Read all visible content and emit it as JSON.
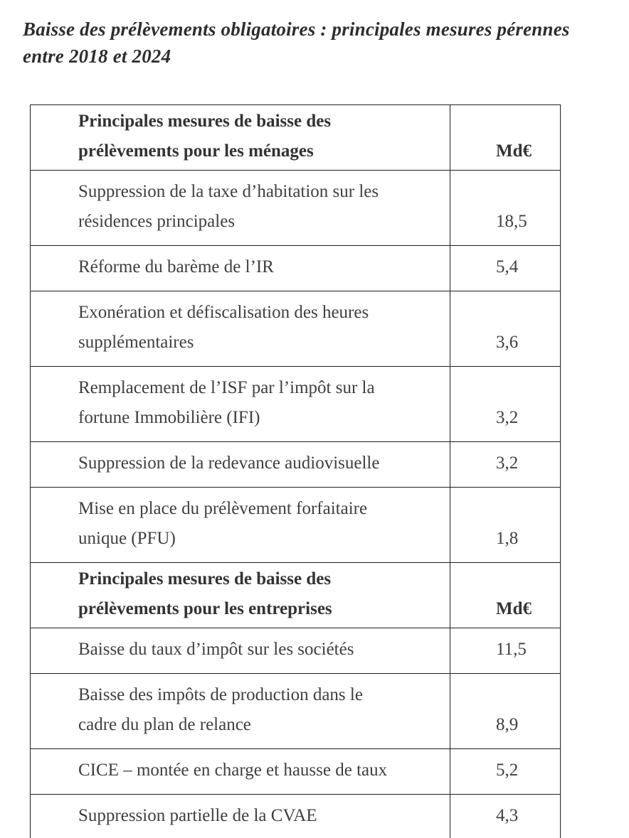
{
  "title": {
    "text": "Baisse des prélèvements obligatoires : principales mesures pérennes\nentre 2018 et 2024"
  },
  "table": {
    "sections": [
      {
        "header": {
          "label": "Principales mesures de baisse des\nprélèvements pour les ménages",
          "unit": "Md€"
        },
        "rows": [
          {
            "label": "Suppression de la taxe d’habitation sur les\nrésidences principales",
            "value": "18,5"
          },
          {
            "label": "Réforme du barème de l’IR",
            "value": "5,4"
          },
          {
            "label": "Exonération et défiscalisation des heures\nsupplémentaires",
            "value": "3,6"
          },
          {
            "label": "Remplacement de l’ISF par l’impôt sur la\nfortune Immobilière (IFI)",
            "value": "3,2"
          },
          {
            "label": "Suppression de la redevance audiovisuelle",
            "value": "3,2"
          },
          {
            "label": "Mise en place du prélèvement forfaitaire\nunique (PFU)",
            "value": "1,8"
          }
        ]
      },
      {
        "header": {
          "label": "Principales mesures de baisse des\nprélèvements pour les entreprises",
          "unit": "Md€"
        },
        "rows": [
          {
            "label": "Baisse du taux d’impôt sur les sociétés",
            "value": "11,5"
          },
          {
            "label": "Baisse des impôts de production dans le\ncadre du plan de relance",
            "value": "8,9"
          },
          {
            "label": "CICE – montée en charge et hausse de taux",
            "value": "5,2"
          },
          {
            "label": "Suppression partielle de la CVAE",
            "value": "4,3"
          }
        ]
      }
    ]
  },
  "colors": {
    "background": "#ffffff",
    "title_text": "#2d2d2d",
    "header_text": "#333333",
    "body_text": "#3f3f3f",
    "border": "#1f1f1f"
  }
}
